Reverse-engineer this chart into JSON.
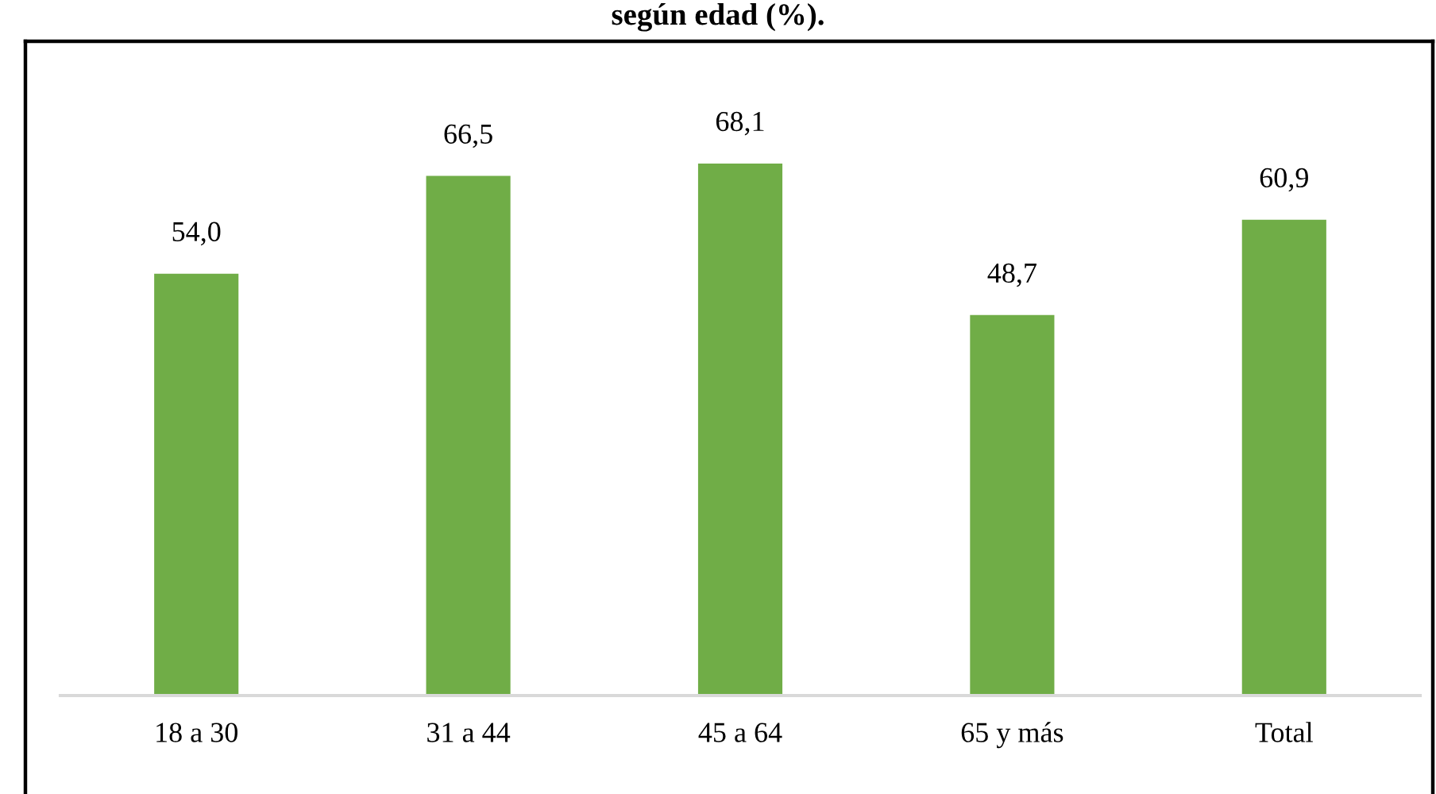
{
  "chart_data": {
    "type": "bar",
    "title": "según edad (%).",
    "categories": [
      "18 a 30",
      "31 a 44",
      "45 a 64",
      "65 y más",
      "Total"
    ],
    "values": [
      54.0,
      66.5,
      68.1,
      48.7,
      60.9
    ],
    "value_labels": [
      "54,0",
      "66,5",
      "68,1",
      "48,7",
      "60,9"
    ],
    "color": "#70ad47",
    "tick_labels": "x"
  }
}
